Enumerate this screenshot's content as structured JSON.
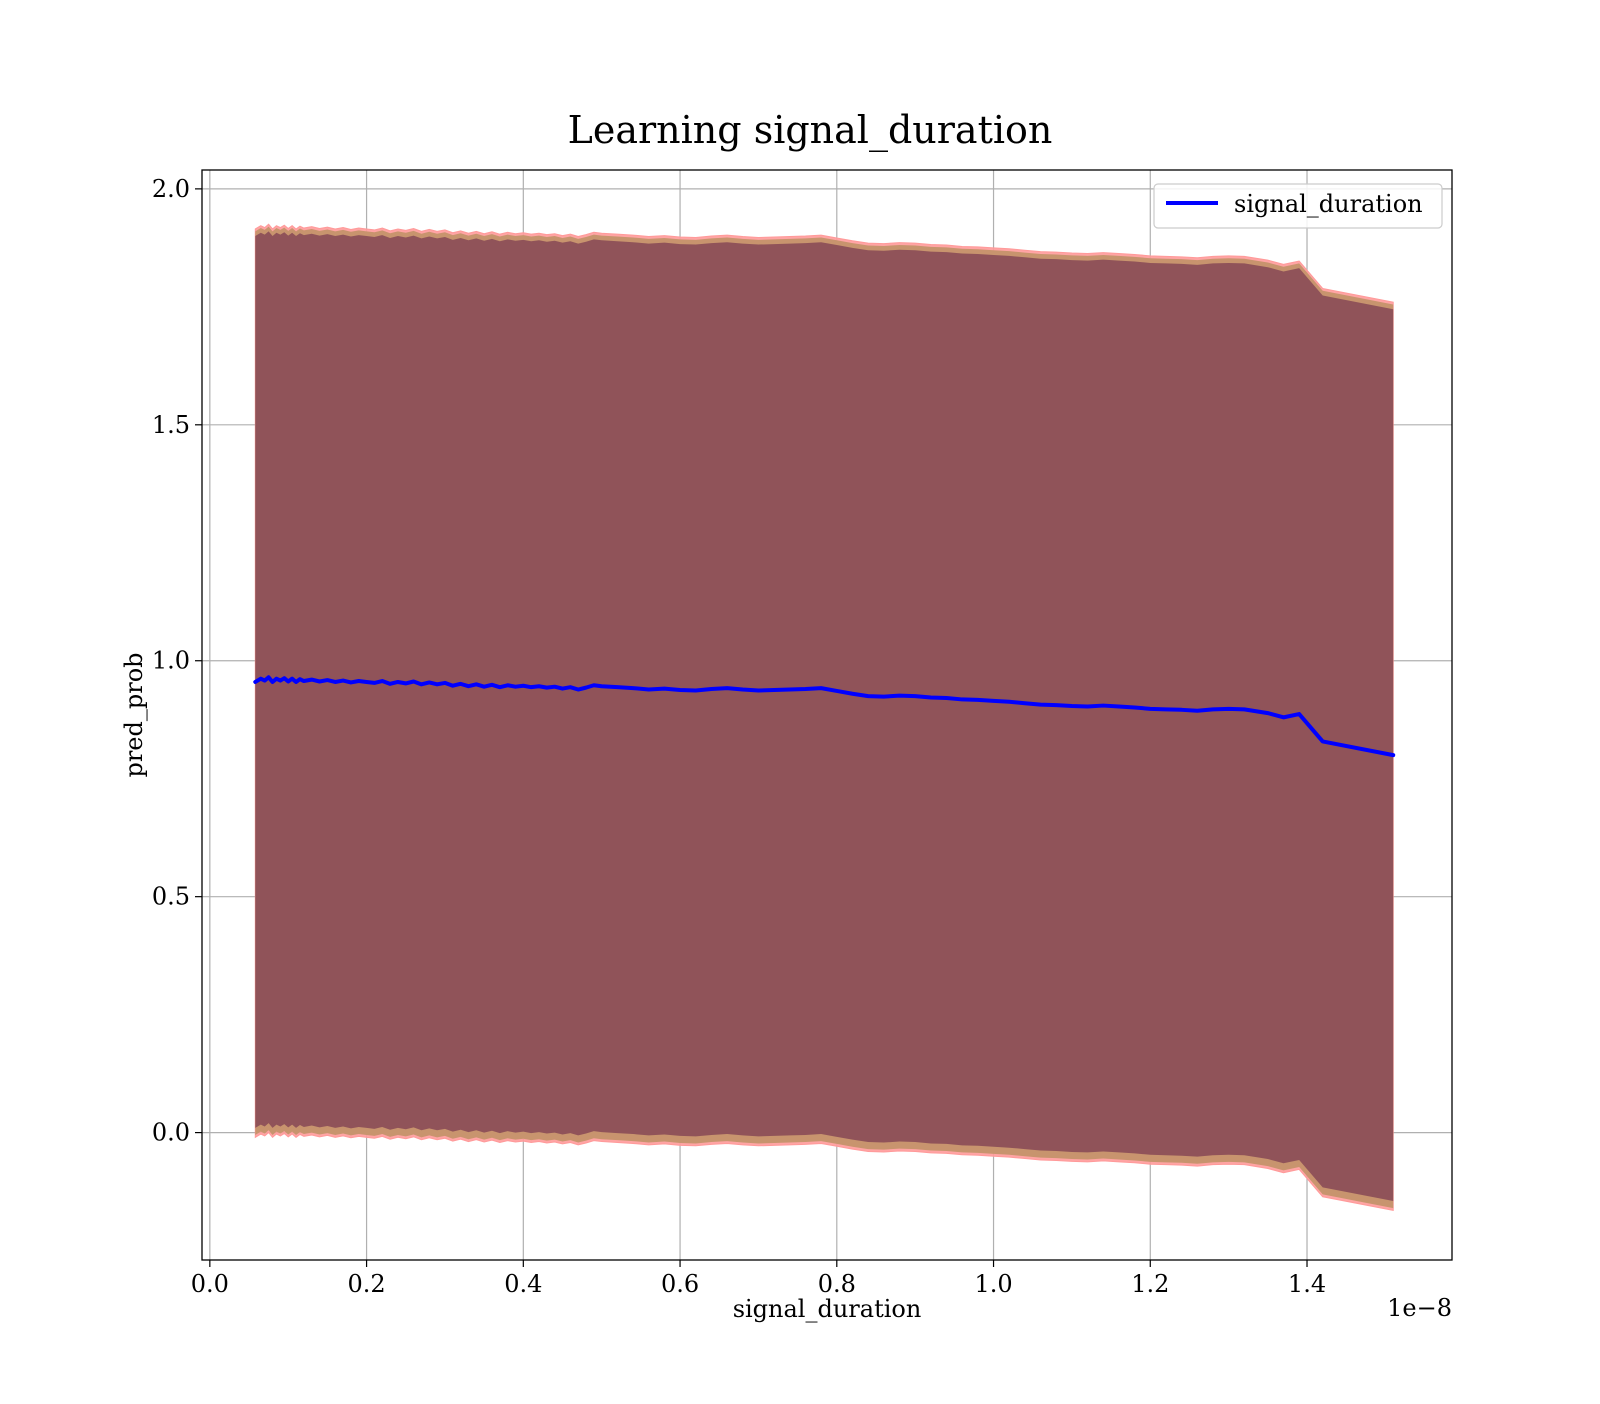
{
  "chart_data": {
    "type": "line",
    "title": "Learning signal_duration",
    "xlabel": "signal_duration",
    "ylabel": "pred_prob",
    "x_offset_label": "1e−8",
    "xlim": [
      -0.01,
      1.585
    ],
    "ylim": [
      -0.27,
      2.04
    ],
    "x_ticks": [
      0.0,
      0.2,
      0.4,
      0.6,
      0.8,
      1.0,
      1.2,
      1.4
    ],
    "x_tick_labels": [
      "0.0",
      "0.2",
      "0.4",
      "0.6",
      "0.8",
      "1.0",
      "1.2",
      "1.4"
    ],
    "y_ticks": [
      0.0,
      0.5,
      1.0,
      1.5,
      2.0
    ],
    "y_tick_labels": [
      "0.0",
      "0.5",
      "1.0",
      "1.5",
      "2.0"
    ],
    "grid": true,
    "legend_position": "upper right",
    "colors": {
      "line": "#0000ff",
      "band_outer": "#ff9a9a",
      "band_mid": "#c8946e",
      "band_inner": "#7a3a52",
      "grid": "#b0b0b0"
    },
    "series": [
      {
        "name": "signal_duration",
        "x": [
          0.058,
          0.065,
          0.07,
          0.075,
          0.08,
          0.085,
          0.09,
          0.095,
          0.1,
          0.105,
          0.11,
          0.115,
          0.12,
          0.13,
          0.14,
          0.15,
          0.16,
          0.17,
          0.18,
          0.19,
          0.2,
          0.21,
          0.22,
          0.23,
          0.24,
          0.25,
          0.26,
          0.27,
          0.28,
          0.29,
          0.3,
          0.31,
          0.32,
          0.33,
          0.34,
          0.35,
          0.36,
          0.37,
          0.38,
          0.39,
          0.4,
          0.41,
          0.42,
          0.43,
          0.44,
          0.45,
          0.46,
          0.47,
          0.48,
          0.49,
          0.5,
          0.52,
          0.54,
          0.56,
          0.58,
          0.6,
          0.62,
          0.64,
          0.66,
          0.68,
          0.7,
          0.72,
          0.74,
          0.76,
          0.78,
          0.8,
          0.82,
          0.84,
          0.86,
          0.88,
          0.9,
          0.92,
          0.94,
          0.96,
          0.98,
          1.0,
          1.02,
          1.04,
          1.06,
          1.08,
          1.1,
          1.12,
          1.14,
          1.16,
          1.18,
          1.2,
          1.22,
          1.24,
          1.26,
          1.28,
          1.3,
          1.32,
          1.35,
          1.37,
          1.39,
          1.42,
          1.51
        ],
        "y": [
          0.955,
          0.962,
          0.958,
          0.965,
          0.955,
          0.962,
          0.958,
          0.963,
          0.956,
          0.962,
          0.955,
          0.961,
          0.957,
          0.96,
          0.956,
          0.959,
          0.955,
          0.958,
          0.954,
          0.957,
          0.955,
          0.953,
          0.957,
          0.951,
          0.955,
          0.952,
          0.956,
          0.95,
          0.954,
          0.95,
          0.953,
          0.947,
          0.951,
          0.946,
          0.95,
          0.945,
          0.949,
          0.944,
          0.948,
          0.945,
          0.947,
          0.944,
          0.946,
          0.943,
          0.945,
          0.941,
          0.944,
          0.939,
          0.943,
          0.948,
          0.946,
          0.944,
          0.942,
          0.939,
          0.941,
          0.938,
          0.937,
          0.94,
          0.942,
          0.939,
          0.937,
          0.938,
          0.939,
          0.94,
          0.942,
          0.936,
          0.93,
          0.925,
          0.924,
          0.926,
          0.925,
          0.922,
          0.921,
          0.918,
          0.917,
          0.915,
          0.913,
          0.91,
          0.907,
          0.906,
          0.904,
          0.903,
          0.905,
          0.903,
          0.901,
          0.898,
          0.897,
          0.896,
          0.894,
          0.897,
          0.898,
          0.897,
          0.889,
          0.88,
          0.887,
          0.829,
          0.8
        ]
      }
    ],
    "bands": {
      "outer_upper_offset": 0.96,
      "outer_lower_offset": 0.965,
      "mid_upper_offset": 0.955,
      "mid_lower_offset": 0.96,
      "inner_upper_offset": 0.945,
      "inner_lower_offset": 0.945
    }
  }
}
